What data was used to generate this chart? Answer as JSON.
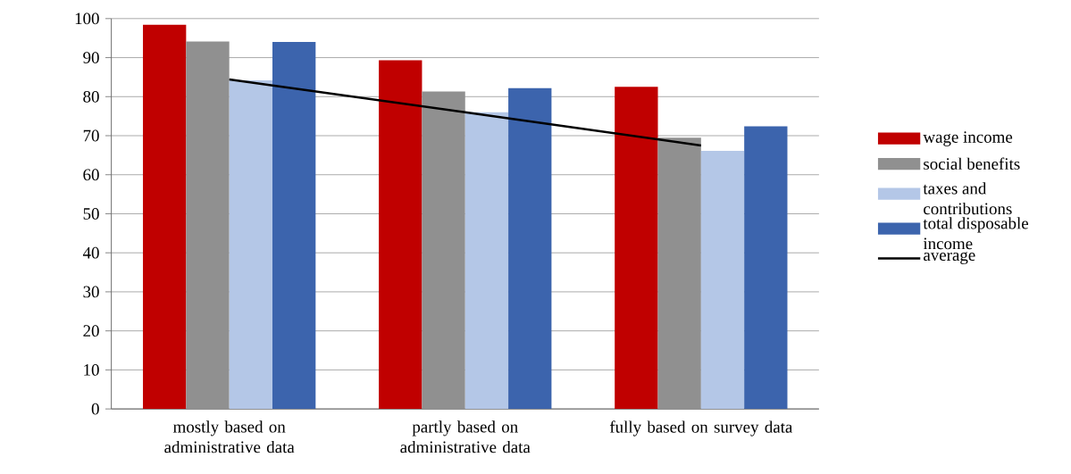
{
  "chart_data": {
    "type": "bar",
    "categories": [
      "mostly based on administrative data",
      "partly based on administrative data",
      "fully based on survey data"
    ],
    "series": [
      {
        "name": "wage income",
        "color": "#c00000",
        "values": [
          98.4,
          89.3,
          82.5
        ]
      },
      {
        "name": "social benefits",
        "color": "#909090",
        "values": [
          94.1,
          81.3,
          69.5
        ]
      },
      {
        "name": "taxes and contributions",
        "color": "#b4c7e7",
        "values": [
          84.2,
          76.0,
          66.1
        ]
      },
      {
        "name": "total disposable income",
        "color": "#3c64ad",
        "values": [
          94.0,
          82.2,
          72.4
        ]
      },
      {
        "name": "average",
        "color": "#000000",
        "type": "line",
        "values": [
          84.4,
          76.0,
          67.5
        ]
      }
    ],
    "ylim": [
      0,
      100
    ],
    "yticks": [
      0,
      10,
      20,
      30,
      40,
      50,
      60,
      70,
      80,
      90,
      100
    ],
    "grid": "y",
    "legend": "right"
  }
}
